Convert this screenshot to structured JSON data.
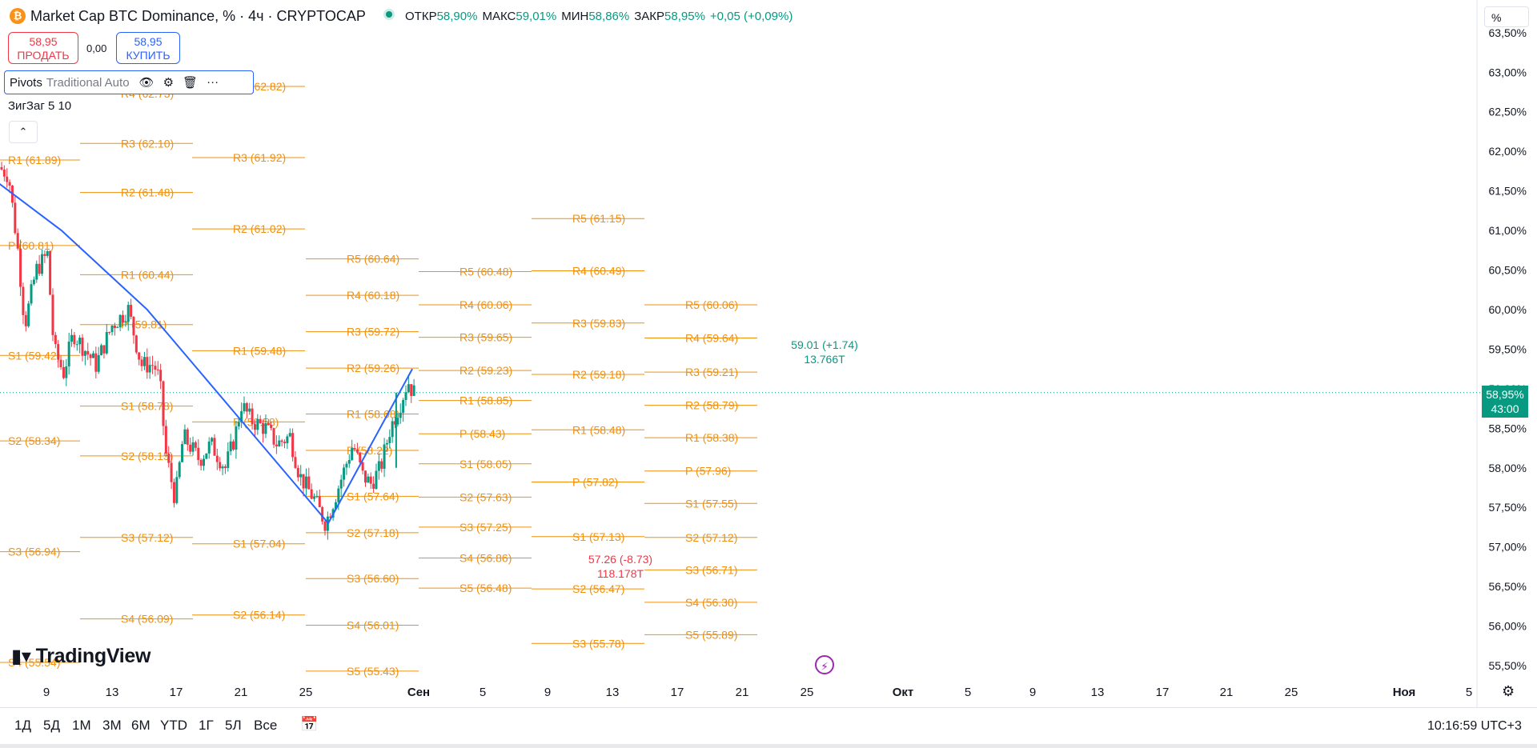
{
  "header": {
    "logo_icon": "bitcoin-icon",
    "symbol": "Market Cap BTC Dominance, % · 4ч · CRYPTOCAP",
    "ohlc": [
      {
        "k": "ОТКР",
        "v": "58,90%"
      },
      {
        "k": "МАКС",
        "v": "59,01%"
      },
      {
        "k": "МИН",
        "v": "58,86%"
      },
      {
        "k": "ЗАКР",
        "v": "58,95%"
      },
      {
        "k": "",
        "v": "+0,05 (+0,09%)"
      }
    ]
  },
  "trade": {
    "sell_price": "58,95",
    "sell_label": "ПРОДАТЬ",
    "spread": "0,00",
    "buy_price": "58,95",
    "buy_label": "КУПИТЬ"
  },
  "indicators": {
    "pivots_name": "Pivots",
    "pivots_params": "Traditional Auto",
    "zigzag": "ЗигЗаг 5 10"
  },
  "logo_text": "TradingView",
  "unit_label": "%",
  "last_price": {
    "value": "58,95%",
    "countdown": "43:00"
  },
  "bottom": {
    "timeframes": [
      "1Д",
      "5Д",
      "1М",
      "3М",
      "6М",
      "YTD",
      "1Г",
      "5Л",
      "Все"
    ],
    "clock": "10:16:59 UTC+3"
  },
  "colors": {
    "pivot": "#f0900f",
    "up": "#089981",
    "down": "#f23645",
    "zigzag": "#2962ff",
    "axis_text": "#131722"
  },
  "chart_data": {
    "type": "candlestick",
    "y_range": [
      55.3,
      63.6
    ],
    "y_ticks": [
      "55,50%",
      "56,00%",
      "56,50%",
      "57,00%",
      "57,50%",
      "58,00%",
      "58,50%",
      "59,00%",
      "59,50%",
      "60,00%",
      "60,50%",
      "61,00%",
      "61,50%",
      "62,00%",
      "62,50%",
      "63,00%",
      "63,50%"
    ],
    "x_ticks": [
      "9",
      "13",
      "17",
      "21",
      "25",
      "Сен",
      "5",
      "9",
      "13",
      "17",
      "21",
      "25",
      "Окт",
      "5",
      "9",
      "13",
      "17",
      "21",
      "25",
      "Ноя",
      "5"
    ],
    "x_start_day": 7,
    "pivot_blocks": [
      {
        "levels": [
          [
            "R1",
            "61.89"
          ],
          [
            "P",
            "60.81"
          ],
          [
            "S1",
            "59.42"
          ],
          [
            "S2",
            "58.34"
          ],
          [
            "S3",
            "56.94"
          ],
          [
            "S4",
            "55.54"
          ]
        ]
      },
      {
        "levels": [
          [
            "R4",
            "62.73"
          ],
          [
            "R3",
            "62.10"
          ],
          [
            "R2",
            "61.48"
          ],
          [
            "R1",
            "60.44"
          ],
          [
            "P",
            "59.81"
          ],
          [
            "S1",
            "58.78"
          ],
          [
            "S2",
            "58.15"
          ],
          [
            "S3",
            "57.12"
          ],
          [
            "S4",
            "56.09"
          ]
        ]
      },
      {
        "levels": [
          [
            "R4",
            "62.82"
          ],
          [
            "R3",
            "61.92"
          ],
          [
            "R2",
            "61.02"
          ],
          [
            "R1",
            "59.48"
          ],
          [
            "P",
            "58.58"
          ],
          [
            "S1",
            "57.04"
          ],
          [
            "S2",
            "56.14"
          ]
        ]
      },
      {
        "levels": [
          [
            "R5",
            "60.64"
          ],
          [
            "R4",
            "60.18"
          ],
          [
            "R3",
            "59.72"
          ],
          [
            "R2",
            "59.26"
          ],
          [
            "R1",
            "58.68"
          ],
          [
            "P",
            "58.22"
          ],
          [
            "S1",
            "57.64"
          ],
          [
            "S2",
            "57.18"
          ],
          [
            "S3",
            "56.60"
          ],
          [
            "S4",
            "56.01"
          ],
          [
            "S5",
            "55.43"
          ]
        ]
      },
      {
        "levels": [
          [
            "R5",
            "60.48"
          ],
          [
            "R4",
            "60.06"
          ],
          [
            "R3",
            "59.65"
          ],
          [
            "R2",
            "59.23"
          ],
          [
            "R1",
            "58.85"
          ],
          [
            "P",
            "58.43"
          ],
          [
            "S1",
            "58.05"
          ],
          [
            "S2",
            "57.63"
          ],
          [
            "S3",
            "57.25"
          ],
          [
            "S4",
            "56.86"
          ],
          [
            "S5",
            "56.48"
          ]
        ]
      },
      {
        "levels": [
          [
            "R5",
            "61.15"
          ],
          [
            "R4",
            "60.49"
          ],
          [
            "R3",
            "59.83"
          ],
          [
            "R2",
            "59.18"
          ],
          [
            "R1",
            "58.48"
          ],
          [
            "P",
            "57.82"
          ],
          [
            "S1",
            "57.13"
          ],
          [
            "S2",
            "56.47"
          ],
          [
            "S3",
            "55.78"
          ]
        ]
      },
      {
        "levels": [
          [
            "R5",
            "60.06"
          ],
          [
            "R4",
            "59.64"
          ],
          [
            "R3",
            "59.21"
          ],
          [
            "R2",
            "58.79"
          ],
          [
            "R1",
            "58.38"
          ],
          [
            "P",
            "57.96"
          ],
          [
            "S1",
            "57.55"
          ],
          [
            "S2",
            "57.12"
          ],
          [
            "S3",
            "56.71"
          ],
          [
            "S4",
            "56.30"
          ],
          [
            "S5",
            "55.89"
          ]
        ]
      }
    ],
    "zigzag": [
      [
        -0.2,
        61.6
      ],
      [
        3.7,
        61.0
      ],
      [
        9.0,
        60.0
      ],
      [
        20.2,
        57.3
      ],
      [
        25.4,
        59.25
      ]
    ],
    "zigzag_labels": [
      {
        "line1": "57.26 (-8.73)",
        "line2": "118.178T",
        "color": "down"
      },
      {
        "line1": "59.01 (+1.74)",
        "line2": "13.766T",
        "color": "up"
      }
    ],
    "waypoints": [
      [
        0,
        61.8
      ],
      [
        0.6,
        61.7
      ],
      [
        1.2,
        60.7
      ],
      [
        1.6,
        59.8
      ],
      [
        2.3,
        60.5
      ],
      [
        3.0,
        60.7
      ],
      [
        3.4,
        59.5
      ],
      [
        4.0,
        59.2
      ],
      [
        4.6,
        59.7
      ],
      [
        5.3,
        59.5
      ],
      [
        6.0,
        59.3
      ],
      [
        7.0,
        59.8
      ],
      [
        8.0,
        60.0
      ],
      [
        8.8,
        59.3
      ],
      [
        9.6,
        59.3
      ],
      [
        9.95,
        59.1
      ],
      [
        10.3,
        58.2
      ],
      [
        10.9,
        57.6
      ],
      [
        11.4,
        58.4
      ],
      [
        12.4,
        58.1
      ],
      [
        13.1,
        58.3
      ],
      [
        14.0,
        58.0
      ],
      [
        14.6,
        58.4
      ],
      [
        15.0,
        58.8
      ],
      [
        15.6,
        58.6
      ],
      [
        16.5,
        58.5
      ],
      [
        17.2,
        58.3
      ],
      [
        18.0,
        58.4
      ],
      [
        18.6,
        57.9
      ],
      [
        19.5,
        57.6
      ],
      [
        20.2,
        57.3
      ],
      [
        20.9,
        57.7
      ],
      [
        21.4,
        58.0
      ],
      [
        21.9,
        58.3
      ],
      [
        22.5,
        57.9
      ],
      [
        23.0,
        57.8
      ],
      [
        23.6,
        58.0
      ],
      [
        24.2,
        58.5
      ],
      [
        24.8,
        58.8
      ],
      [
        25.3,
        59.1
      ],
      [
        25.6,
        58.95
      ]
    ],
    "wicks": [
      [
        24.85,
        59.05,
        58.85
      ],
      [
        24.4,
        58.5,
        58.2
      ]
    ]
  }
}
